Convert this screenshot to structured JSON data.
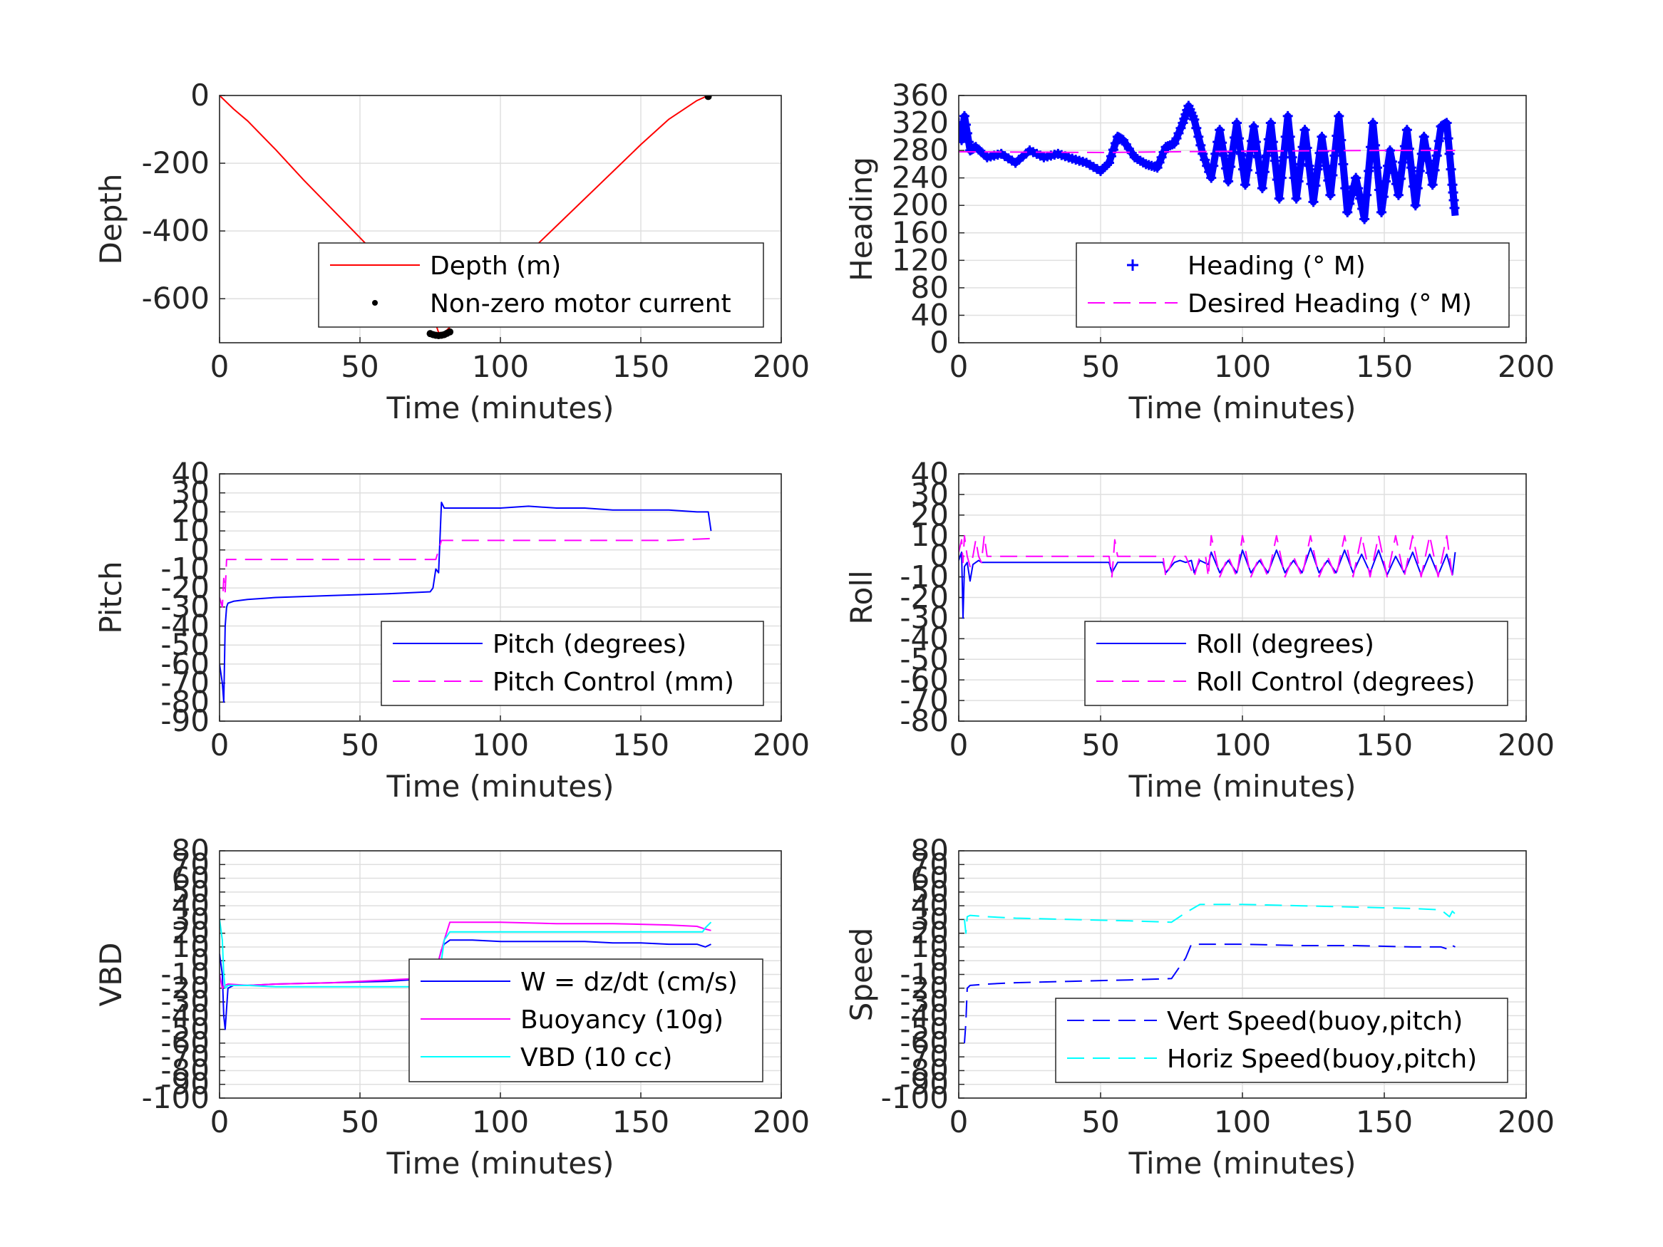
{
  "chart_data": [
    {
      "type": "line",
      "xlabel": "Time (minutes)",
      "ylabel": "Depth",
      "xlim": [
        0,
        200
      ],
      "ylim": [
        -730,
        0
      ],
      "xticks": [
        "0",
        "50",
        "100",
        "150",
        "200"
      ],
      "yticks": [
        "0",
        "-200",
        "-400",
        "-600"
      ],
      "yticks_values": [
        0,
        -200,
        -400,
        -600
      ],
      "grid": true,
      "legend_position": "bottom-right",
      "series": [
        {
          "name": "Depth (m)",
          "color": "#ff0000",
          "style": "solid",
          "x": [
            0,
            5,
            10,
            20,
            30,
            40,
            50,
            60,
            70,
            76,
            78,
            80,
            85,
            90,
            100,
            110,
            120,
            130,
            140,
            150,
            160,
            170,
            174
          ],
          "y": [
            0,
            -40,
            -75,
            -160,
            -250,
            -335,
            -420,
            -505,
            -590,
            -650,
            -700,
            -700,
            -660,
            -620,
            -545,
            -465,
            -385,
            -305,
            -225,
            -145,
            -70,
            -15,
            0
          ]
        },
        {
          "name": "Non-zero motor current",
          "color": "#000000",
          "style": "dots",
          "x": [
            75,
            76,
            77,
            78,
            79,
            80,
            81,
            82,
            174
          ],
          "y": [
            -703,
            -706,
            -708,
            -709,
            -708,
            -706,
            -702,
            -698,
            -3
          ]
        }
      ]
    },
    {
      "type": "line",
      "xlabel": "Time (minutes)",
      "ylabel": "Heading",
      "xlim": [
        0,
        200
      ],
      "ylim": [
        0,
        360
      ],
      "xticks": [
        "0",
        "50",
        "100",
        "150",
        "200"
      ],
      "yticks": [
        "360",
        "320",
        "280",
        "240",
        "200",
        "160",
        "120",
        "80",
        "40",
        "0"
      ],
      "yticks_values": [
        360,
        320,
        280,
        240,
        200,
        160,
        120,
        80,
        40,
        0
      ],
      "grid": true,
      "legend_position": "bottom-right",
      "series": [
        {
          "name": "Heading (° M)",
          "color": "#0000ff",
          "style": "plus",
          "x": [
            0,
            1,
            2,
            4,
            6,
            10,
            15,
            20,
            25,
            30,
            35,
            40,
            45,
            50,
            53,
            56,
            58,
            62,
            66,
            70,
            73,
            76,
            79,
            81,
            83,
            86,
            89,
            92,
            95,
            98,
            101,
            104,
            107,
            110,
            113,
            116,
            119,
            122,
            125,
            128,
            131,
            134,
            137,
            140,
            143,
            146,
            149,
            152,
            155,
            158,
            161,
            164,
            167,
            170,
            172,
            174,
            175
          ],
          "y": [
            320,
            295,
            330,
            280,
            285,
            270,
            275,
            262,
            280,
            270,
            275,
            268,
            262,
            250,
            262,
            300,
            295,
            270,
            260,
            255,
            285,
            290,
            320,
            345,
            325,
            275,
            240,
            310,
            235,
            320,
            230,
            315,
            225,
            320,
            210,
            330,
            210,
            310,
            205,
            300,
            215,
            330,
            190,
            240,
            180,
            320,
            190,
            280,
            215,
            310,
            200,
            300,
            230,
            315,
            320,
            230,
            185
          ]
        },
        {
          "name": "Desired Heading (° M)",
          "color": "#ff00ff",
          "style": "dashed",
          "x": [
            0,
            50,
            100,
            150,
            175
          ],
          "y": [
            278,
            277,
            279,
            280,
            280
          ]
        }
      ]
    },
    {
      "type": "line",
      "xlabel": "Time (minutes)",
      "ylabel": "Pitch",
      "xlim": [
        0,
        200
      ],
      "ylim": [
        -90,
        40
      ],
      "xticks": [
        "0",
        "50",
        "100",
        "150",
        "200"
      ],
      "yticks": [
        "40",
        "30",
        "20",
        "10",
        "0",
        "-10",
        "-20",
        "-30",
        "-40",
        "-50",
        "-60",
        "-70",
        "-80",
        "-90"
      ],
      "yticks_values": [
        40,
        30,
        20,
        10,
        0,
        -10,
        -20,
        -30,
        -40,
        -50,
        -60,
        -70,
        -80,
        -90
      ],
      "grid": true,
      "legend_position": "bottom-right",
      "series": [
        {
          "name": "Pitch (degrees)",
          "color": "#0000ff",
          "style": "solid",
          "x": [
            0,
            1,
            1.5,
            2,
            2.5,
            3,
            5,
            10,
            20,
            40,
            60,
            75,
            76,
            77,
            78,
            79,
            80,
            90,
            100,
            110,
            120,
            130,
            140,
            150,
            160,
            170,
            174,
            175
          ],
          "y": [
            -60,
            -70,
            -80,
            -40,
            -30,
            -28,
            -27,
            -26,
            -25,
            -24,
            -23,
            -22,
            -20,
            -10,
            -12,
            25,
            22,
            22,
            22,
            23,
            22,
            22,
            21,
            21,
            21,
            20,
            20,
            10
          ]
        },
        {
          "name": "Pitch Control (mm)",
          "color": "#ff00ff",
          "style": "dashed",
          "x": [
            0,
            1,
            1.5,
            2,
            2.5,
            3,
            20,
            40,
            60,
            77,
            78,
            79,
            80,
            100,
            120,
            140,
            160,
            175
          ],
          "y": [
            -25,
            -30,
            -15,
            -22,
            -5,
            -5,
            -5,
            -5,
            -5,
            -5,
            0,
            5,
            5,
            5,
            5,
            5,
            5,
            6
          ]
        }
      ]
    },
    {
      "type": "line",
      "xlabel": "Time (minutes)",
      "ylabel": "Roll",
      "xlim": [
        0,
        200
      ],
      "ylim": [
        -80,
        40
      ],
      "xticks": [
        "0",
        "50",
        "100",
        "150",
        "200"
      ],
      "yticks": [
        "40",
        "30",
        "20",
        "10",
        "0",
        "-10",
        "-20",
        "-30",
        "-40",
        "-50",
        "-60",
        "-70",
        "-80"
      ],
      "yticks_values": [
        40,
        30,
        20,
        10,
        0,
        -10,
        -20,
        -30,
        -40,
        -50,
        -60,
        -70,
        -80
      ],
      "grid": true,
      "legend_position": "bottom-right",
      "series": [
        {
          "name": "Roll (degrees)",
          "color": "#0000ff",
          "style": "solid",
          "x": [
            0,
            1,
            1.5,
            2,
            3,
            4,
            5,
            6,
            7,
            8,
            10,
            20,
            30,
            40,
            50,
            53,
            54,
            56,
            58,
            70,
            72,
            73,
            76,
            78,
            80,
            82,
            83,
            85,
            88,
            89,
            92,
            95,
            98,
            100,
            103,
            106,
            109,
            112,
            115,
            118,
            121,
            124,
            127,
            130,
            133,
            136,
            139,
            142,
            145,
            148,
            151,
            154,
            157,
            160,
            163,
            166,
            169,
            172,
            174,
            175
          ],
          "y": [
            -2,
            2,
            -30,
            -5,
            -3,
            -12,
            -4,
            -3,
            -2,
            -3,
            -3,
            -3,
            -3,
            -3,
            -3,
            -3,
            -8,
            -3,
            -3,
            -3,
            -3,
            -8,
            -3,
            -2,
            -3,
            -2,
            -8,
            -2,
            -4,
            2,
            -8,
            -2,
            -8,
            3,
            -8,
            -2,
            -8,
            3,
            -8,
            -2,
            -8,
            4,
            -8,
            -2,
            -8,
            3,
            -8,
            1,
            -8,
            3,
            -9,
            0,
            -8,
            2,
            -9,
            1,
            -9,
            1,
            -9,
            2
          ]
        },
        {
          "name": "Roll Control (degrees)",
          "color": "#ff00ff",
          "style": "dashed",
          "x": [
            0,
            1,
            1.5,
            2,
            3,
            4,
            5,
            6,
            7,
            8,
            9,
            10,
            20,
            30,
            40,
            50,
            53,
            54,
            55,
            56,
            58,
            70,
            72,
            73,
            76,
            80,
            83,
            85,
            87,
            88,
            89,
            92,
            95,
            98,
            100,
            103,
            106,
            109,
            112,
            115,
            118,
            121,
            124,
            127,
            130,
            133,
            136,
            139,
            142,
            145,
            148,
            151,
            154,
            157,
            160,
            163,
            166,
            169,
            172,
            174
          ],
          "y": [
            2,
            8,
            -3,
            10,
            0,
            -5,
            0,
            8,
            0,
            -3,
            10,
            0,
            0,
            0,
            0,
            0,
            0,
            -10,
            8,
            0,
            0,
            0,
            0,
            -10,
            0,
            0,
            -10,
            0,
            0,
            -10,
            10,
            -10,
            0,
            -10,
            10,
            -10,
            0,
            -10,
            10,
            -10,
            0,
            -10,
            10,
            -10,
            0,
            -10,
            10,
            -10,
            10,
            -10,
            10,
            -10,
            10,
            -10,
            10,
            -10,
            10,
            -10,
            10,
            -10
          ]
        }
      ]
    },
    {
      "type": "line",
      "xlabel": "Time (minutes)",
      "ylabel": "VBD",
      "xlim": [
        0,
        200
      ],
      "ylim": [
        -100,
        80
      ],
      "xticks": [
        "0",
        "50",
        "100",
        "150",
        "200"
      ],
      "yticks": [
        "80",
        "70",
        "60",
        "50",
        "40",
        "30",
        "20",
        "10",
        "0",
        "-10",
        "-20",
        "-30",
        "-40",
        "-50",
        "-60",
        "-70",
        "-80",
        "-90",
        "-100"
      ],
      "yticks_values": [
        80,
        70,
        60,
        50,
        40,
        30,
        20,
        10,
        0,
        -10,
        -20,
        -30,
        -40,
        -50,
        -60,
        -70,
        -80,
        -90,
        -100
      ],
      "grid": true,
      "legend_position": "bottom-right",
      "series": [
        {
          "name": "W = dz/dt (cm/s)",
          "color": "#0000ff",
          "style": "solid",
          "x": [
            0,
            1,
            1.5,
            2,
            3,
            5,
            10,
            20,
            40,
            60,
            75,
            77,
            78,
            79,
            80,
            82,
            90,
            100,
            110,
            120,
            130,
            140,
            150,
            160,
            170,
            173,
            175
          ],
          "y": [
            5,
            -10,
            -40,
            -50,
            -20,
            -18,
            -18,
            -17,
            -16,
            -15,
            -13,
            -10,
            0,
            8,
            12,
            15,
            15,
            14,
            14,
            14,
            14,
            13,
            13,
            12,
            12,
            10,
            12
          ]
        },
        {
          "name": "Buoyancy (10g)",
          "color": "#ff00ff",
          "style": "solid",
          "x": [
            0,
            1,
            2,
            3,
            10,
            20,
            40,
            60,
            70,
            75,
            78,
            80,
            82,
            90,
            100,
            120,
            140,
            160,
            170,
            173,
            175
          ],
          "y": [
            -10,
            -20,
            -18,
            -17,
            -18,
            -17,
            -16,
            -14,
            -13,
            -12,
            0,
            15,
            28,
            28,
            28,
            27,
            27,
            26,
            25,
            23,
            22
          ]
        },
        {
          "name": "VBD (10 cc)",
          "color": "#00ffff",
          "style": "solid",
          "x": [
            0,
            1,
            1.5,
            2,
            3,
            10,
            20,
            40,
            60,
            70,
            75,
            77,
            79,
            80,
            82,
            100,
            120,
            140,
            160,
            172,
            173,
            175
          ],
          "y": [
            30,
            15,
            -10,
            -20,
            -18,
            -18,
            -19,
            -19,
            -19,
            -19,
            -19,
            -15,
            0,
            15,
            21,
            21,
            21,
            21,
            21,
            21,
            24,
            28
          ]
        }
      ]
    },
    {
      "type": "line",
      "xlabel": "Time (minutes)",
      "ylabel": "Speed",
      "xlim": [
        0,
        200
      ],
      "ylim": [
        -100,
        80
      ],
      "xticks": [
        "0",
        "50",
        "100",
        "150",
        "200"
      ],
      "yticks": [
        "80",
        "70",
        "60",
        "50",
        "40",
        "30",
        "20",
        "10",
        "0",
        "-10",
        "-20",
        "-30",
        "-40",
        "-50",
        "-60",
        "-70",
        "-80",
        "-90",
        "-100"
      ],
      "yticks_values": [
        80,
        70,
        60,
        50,
        40,
        30,
        20,
        10,
        0,
        -10,
        -20,
        -30,
        -40,
        -50,
        -60,
        -70,
        -80,
        -90,
        -100
      ],
      "grid": true,
      "legend_position": "bottom-right",
      "series": [
        {
          "name": "Vert Speed(buoy,pitch)",
          "color": "#0000ff",
          "style": "dashed",
          "x": [
            2,
            2.5,
            3,
            4,
            10,
            20,
            40,
            60,
            75,
            80,
            82,
            90,
            100,
            120,
            140,
            160,
            170,
            173,
            174,
            175
          ],
          "y": [
            -60,
            -45,
            -20,
            -18,
            -17,
            -16,
            -15,
            -14,
            -13,
            2,
            12,
            12,
            12,
            11,
            11,
            10,
            10,
            8,
            11,
            10
          ]
        },
        {
          "name": "Horiz Speed(buoy,pitch)",
          "color": "#00ffff",
          "style": "dashed",
          "x": [
            2,
            2.5,
            3,
            4,
            10,
            20,
            40,
            60,
            75,
            80,
            85,
            90,
            100,
            120,
            140,
            160,
            170,
            173,
            174,
            175
          ],
          "y": [
            30,
            20,
            32,
            33,
            32,
            31,
            30,
            29,
            28,
            35,
            41,
            41,
            41,
            40,
            39,
            38,
            37,
            32,
            36,
            34
          ]
        }
      ]
    }
  ]
}
